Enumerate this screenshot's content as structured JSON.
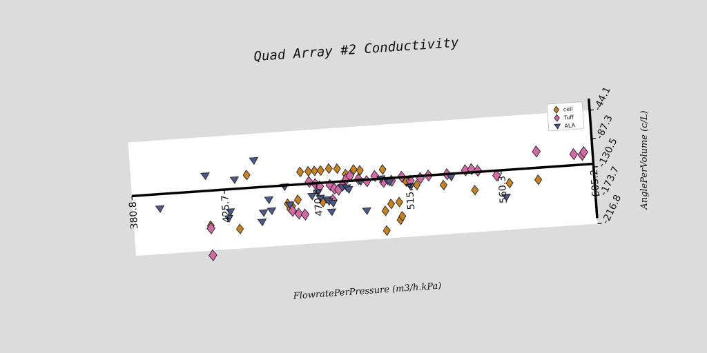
{
  "chart_data": {
    "type": "scatter",
    "title": "Quad Array #2 Conductivity",
    "xlabel": "FlowratePerPressure (m3/h.kPa)",
    "ylabel": "AnglePerVolume (c/L)",
    "xlim": [
      380.8,
      605.2
    ],
    "ylim": [
      -216.8,
      -44.1
    ],
    "x_ticks": [
      "380.8",
      "425.7",
      "470.6",
      "515.4",
      "560.3",
      "605.2"
    ],
    "y_ticks": [
      "-44.1",
      "-87.3",
      "-130.5",
      "-173.7",
      "-216.8"
    ],
    "grid": false,
    "legend_position": "top-right",
    "colors": {
      "cell": "#c8821e",
      "Tuff": "#d36aa5",
      "ALA": "#4a5a8c"
    },
    "series": [
      {
        "name": "cell",
        "marker": "diamond",
        "points": [
          [
            437,
            -106
          ],
          [
            463,
            -107
          ],
          [
            467,
            -107
          ],
          [
            470,
            -107
          ],
          [
            473,
            -107
          ],
          [
            477,
            -105
          ],
          [
            481,
            -106
          ],
          [
            485,
            -115
          ],
          [
            489,
            -109
          ],
          [
            492,
            -111
          ],
          [
            456,
            -154
          ],
          [
            458,
            -158
          ],
          [
            461,
            -149
          ],
          [
            457,
            -162
          ],
          [
            473,
            -155
          ],
          [
            503,
            -112
          ],
          [
            503,
            -175
          ],
          [
            506,
            -165
          ],
          [
            510,
            -163
          ],
          [
            514,
            -133
          ],
          [
            519,
            -139
          ],
          [
            532,
            -142
          ],
          [
            547,
            -153
          ],
          [
            564,
            -146
          ],
          [
            578,
            -144
          ],
          [
            503,
            -205
          ],
          [
            510,
            -190
          ],
          [
            511,
            -185
          ],
          [
            418,
            -179
          ],
          [
            432,
            -187
          ]
        ]
      },
      {
        "name": "Tuff",
        "marker": "diamond",
        "points": [
          [
            467,
            -123
          ],
          [
            470,
            -127
          ],
          [
            472,
            -131
          ],
          [
            477,
            -130
          ],
          [
            479,
            -136
          ],
          [
            481,
            -138
          ],
          [
            483,
            -132
          ],
          [
            485,
            -123
          ],
          [
            487,
            -118
          ],
          [
            491,
            -124
          ],
          [
            495,
            -128
          ],
          [
            499,
            -121
          ],
          [
            503,
            -131
          ],
          [
            507,
            -130
          ],
          [
            512,
            -125
          ],
          [
            516,
            -132
          ],
          [
            521,
            -129
          ],
          [
            525,
            -126
          ],
          [
            534,
            -126
          ],
          [
            543,
            -122
          ],
          [
            546,
            -121
          ],
          [
            549,
            -124
          ],
          [
            558,
            -133
          ],
          [
            578,
            -101
          ],
          [
            596,
            -109
          ],
          [
            600,
            -111
          ],
          [
            601,
            -107
          ],
          [
            458,
            -165
          ],
          [
            461,
            -170
          ],
          [
            464,
            -172
          ],
          [
            478,
            -153
          ],
          [
            418,
            -183
          ],
          [
            418,
            -224
          ]
        ]
      },
      {
        "name": "ALA",
        "marker": "triangle-down",
        "points": [
          [
            394,
            -148
          ],
          [
            417,
            -103
          ],
          [
            427,
            -170
          ],
          [
            428,
            -160
          ],
          [
            431,
            -112
          ],
          [
            441,
            -85
          ],
          [
            443,
            -179
          ],
          [
            444,
            -165
          ],
          [
            447,
            -146
          ],
          [
            448,
            -163
          ],
          [
            455,
            -128
          ],
          [
            457,
            -156
          ],
          [
            468,
            -145
          ],
          [
            471,
            -140
          ],
          [
            472,
            -149
          ],
          [
            475,
            -152
          ],
          [
            476,
            -155
          ],
          [
            477,
            -171
          ],
          [
            478,
            -158
          ],
          [
            483,
            -135
          ],
          [
            485,
            -136
          ],
          [
            486,
            -139
          ],
          [
            492,
            -128
          ],
          [
            494,
            -173
          ],
          [
            502,
            -126
          ],
          [
            505,
            -130
          ],
          [
            506,
            -132
          ],
          [
            516,
            -141
          ],
          [
            536,
            -131
          ],
          [
            562,
            -167
          ]
        ]
      }
    ]
  }
}
